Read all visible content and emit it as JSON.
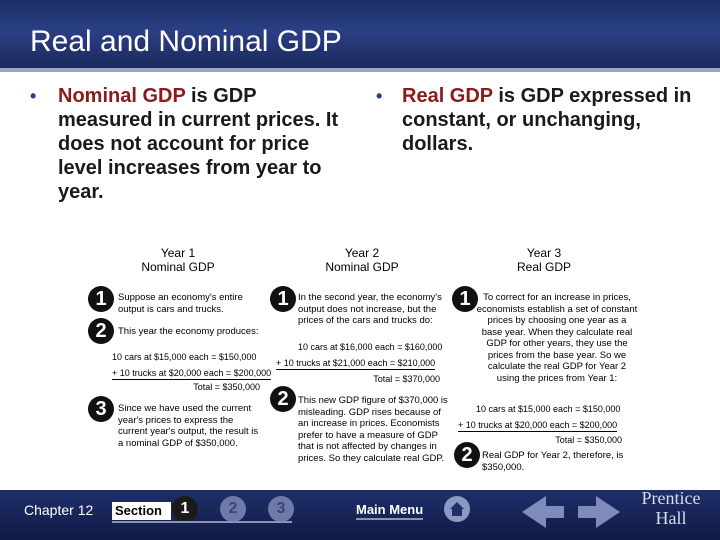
{
  "title": "Real and Nominal GDP",
  "bullets": {
    "left": {
      "term": "Nominal GDP",
      "rest": " is GDP measured in current prices. It does not account for price level increases from year to year."
    },
    "right": {
      "term": "Real GDP",
      "rest": " is GDP expressed in constant, or unchanging, dollars."
    }
  },
  "columns": {
    "col1_title": "Year 1\nNominal GDP",
    "col2_title": "Year 2\nNominal GDP",
    "col3_title": "Year 3\nReal GDP"
  },
  "col1": {
    "n1": "1",
    "n2": "2",
    "n3": "3",
    "step1": "Suppose an economy's entire output is cars and trucks.",
    "step2": "This year the economy produces:",
    "calc1": "10 cars at $15,000 each = $150,000",
    "calc2": "+ 10 trucks at $20,000 each = $200,000",
    "total": "Total = $350,000",
    "step3": "Since we have used the current year's prices to express the current year's output, the result is a nominal GDP of $350,000."
  },
  "col2": {
    "n1": "1",
    "n2": "2",
    "step1": "In the second year, the economy's output does not increase, but the prices of the cars and trucks do:",
    "calc1": "10 cars at $16,000 each = $160,000",
    "calc2": "+ 10 trucks at $21,000 each = $210,000",
    "total": "Total = $370,000",
    "step2": "This new GDP figure of $370,000 is misleading. GDP rises because of an increase in prices. Economists prefer to have a measure of GDP that is not affected by changes in prices. So they calculate real GDP."
  },
  "col3": {
    "n1": "1",
    "n2": "2",
    "step1": "To correct for an increase in prices, economists establish a set of constant prices by choosing one year as a base year. When they calculate real GDP for other years, they use the prices from the base year. So we calculate the real GDP for Year 2 using the prices from Year 1:",
    "calc1": "10 cars at $15,000 each = $150,000",
    "calc2": "+ 10 trucks at $20,000 each = $200,000",
    "total": "Total = $350,000",
    "step2": "Real GDP for Year 2, therefore, is $350,000."
  },
  "footer": {
    "chapter": "Chapter 12",
    "section_label": "Section",
    "section_1": "1",
    "section_2": "2",
    "section_3": "3",
    "main_menu": "Main Menu",
    "brand": "Prentice\nHall"
  },
  "colors": {
    "header": "#2b3f85",
    "term": "#8b1a1a",
    "footer": "#1f2f6a"
  }
}
